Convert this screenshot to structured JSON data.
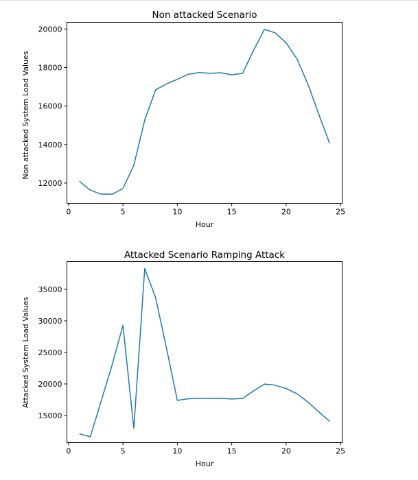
{
  "colors": {
    "line": "#1f77b4",
    "axis": "#000000",
    "background": "#ffffff"
  },
  "chart_data": [
    {
      "type": "line",
      "title": "Non attacked Scenario",
      "xlabel": "Hour",
      "ylabel": "Non attacked System Load Values",
      "xlim": [
        -0.15,
        25.15
      ],
      "ylim": [
        10950,
        20350
      ],
      "xticks": [
        0,
        5,
        10,
        15,
        20,
        25
      ],
      "yticks": [
        12000,
        14000,
        16000,
        18000,
        20000
      ],
      "grid": false,
      "series": [
        {
          "x": [
            1,
            2,
            3,
            4,
            5,
            6,
            7,
            8,
            9,
            10,
            11,
            12,
            13,
            14,
            15,
            16,
            17,
            18,
            19,
            20,
            21,
            22,
            23,
            24
          ],
          "y": [
            12100,
            11630,
            11430,
            11420,
            11720,
            12930,
            15270,
            16840,
            17150,
            17390,
            17650,
            17740,
            17700,
            17730,
            17620,
            17700,
            18890,
            19980,
            19800,
            19280,
            18450,
            17140,
            15580,
            14060
          ]
        }
      ]
    },
    {
      "type": "line",
      "title": "Attacked Scenario Ramping Attack",
      "xlabel": "Hour",
      "ylabel": "Attacked System Load Values",
      "xlim": [
        -0.15,
        25.15
      ],
      "ylim": [
        10700,
        39400
      ],
      "xticks": [
        0,
        5,
        10,
        15,
        20,
        25
      ],
      "yticks": [
        15000,
        20000,
        25000,
        30000,
        35000
      ],
      "grid": false,
      "series": [
        {
          "x": [
            1,
            2,
            3,
            4,
            5,
            6,
            7,
            8,
            9,
            10,
            11,
            12,
            13,
            14,
            15,
            16,
            17,
            18,
            19,
            20,
            21,
            22,
            23,
            24
          ],
          "y": [
            12100,
            11630,
            17300,
            23000,
            29300,
            12950,
            38300,
            33700,
            25700,
            17400,
            17650,
            17740,
            17700,
            17730,
            17620,
            17700,
            18890,
            19980,
            19800,
            19280,
            18450,
            17140,
            15580,
            14060
          ]
        }
      ]
    }
  ]
}
